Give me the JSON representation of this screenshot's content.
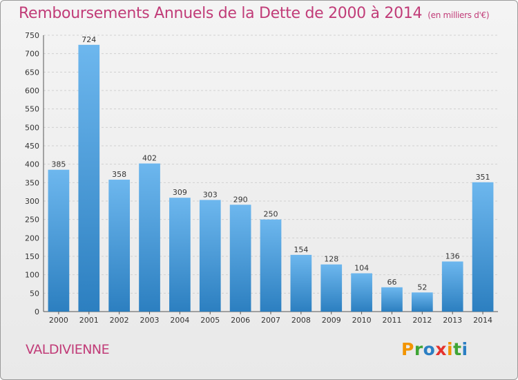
{
  "title": "Remboursements Annuels de la Dette de 2000 à 2014",
  "title_unit": "(en milliers d'€)",
  "commune": "VALDIVIENNE",
  "logo": {
    "text": "Proxiti",
    "letters": [
      {
        "char": "P",
        "color": "#f29400"
      },
      {
        "char": "r",
        "color": "#3fa535"
      },
      {
        "char": "o",
        "color": "#2b7fc3"
      },
      {
        "char": "x",
        "color": "#e5322d"
      },
      {
        "char": "i",
        "color": "#f29400"
      },
      {
        "char": "t",
        "color": "#3fa535"
      },
      {
        "char": "i",
        "color": "#2b7fc3"
      }
    ]
  },
  "colors": {
    "title": "#c13c78",
    "bar_light": "#6db7ee",
    "bar_dark": "#2c7fc0",
    "grid": "#d0d0d0"
  },
  "chart_data": {
    "type": "bar",
    "title": "Remboursements Annuels de la Dette de 2000 à 2014",
    "xlabel": "",
    "ylabel": "",
    "categories": [
      "2000",
      "2001",
      "2002",
      "2003",
      "2004",
      "2005",
      "2006",
      "2007",
      "2008",
      "2009",
      "2010",
      "2011",
      "2012",
      "2013",
      "2014"
    ],
    "values": [
      385,
      724,
      358,
      402,
      309,
      303,
      290,
      250,
      154,
      128,
      104,
      66,
      52,
      136,
      351
    ],
    "ylim": [
      0,
      750
    ],
    "yticks": [
      0,
      50,
      100,
      150,
      200,
      250,
      300,
      350,
      400,
      450,
      500,
      550,
      600,
      650,
      700,
      750
    ],
    "grid": true
  }
}
